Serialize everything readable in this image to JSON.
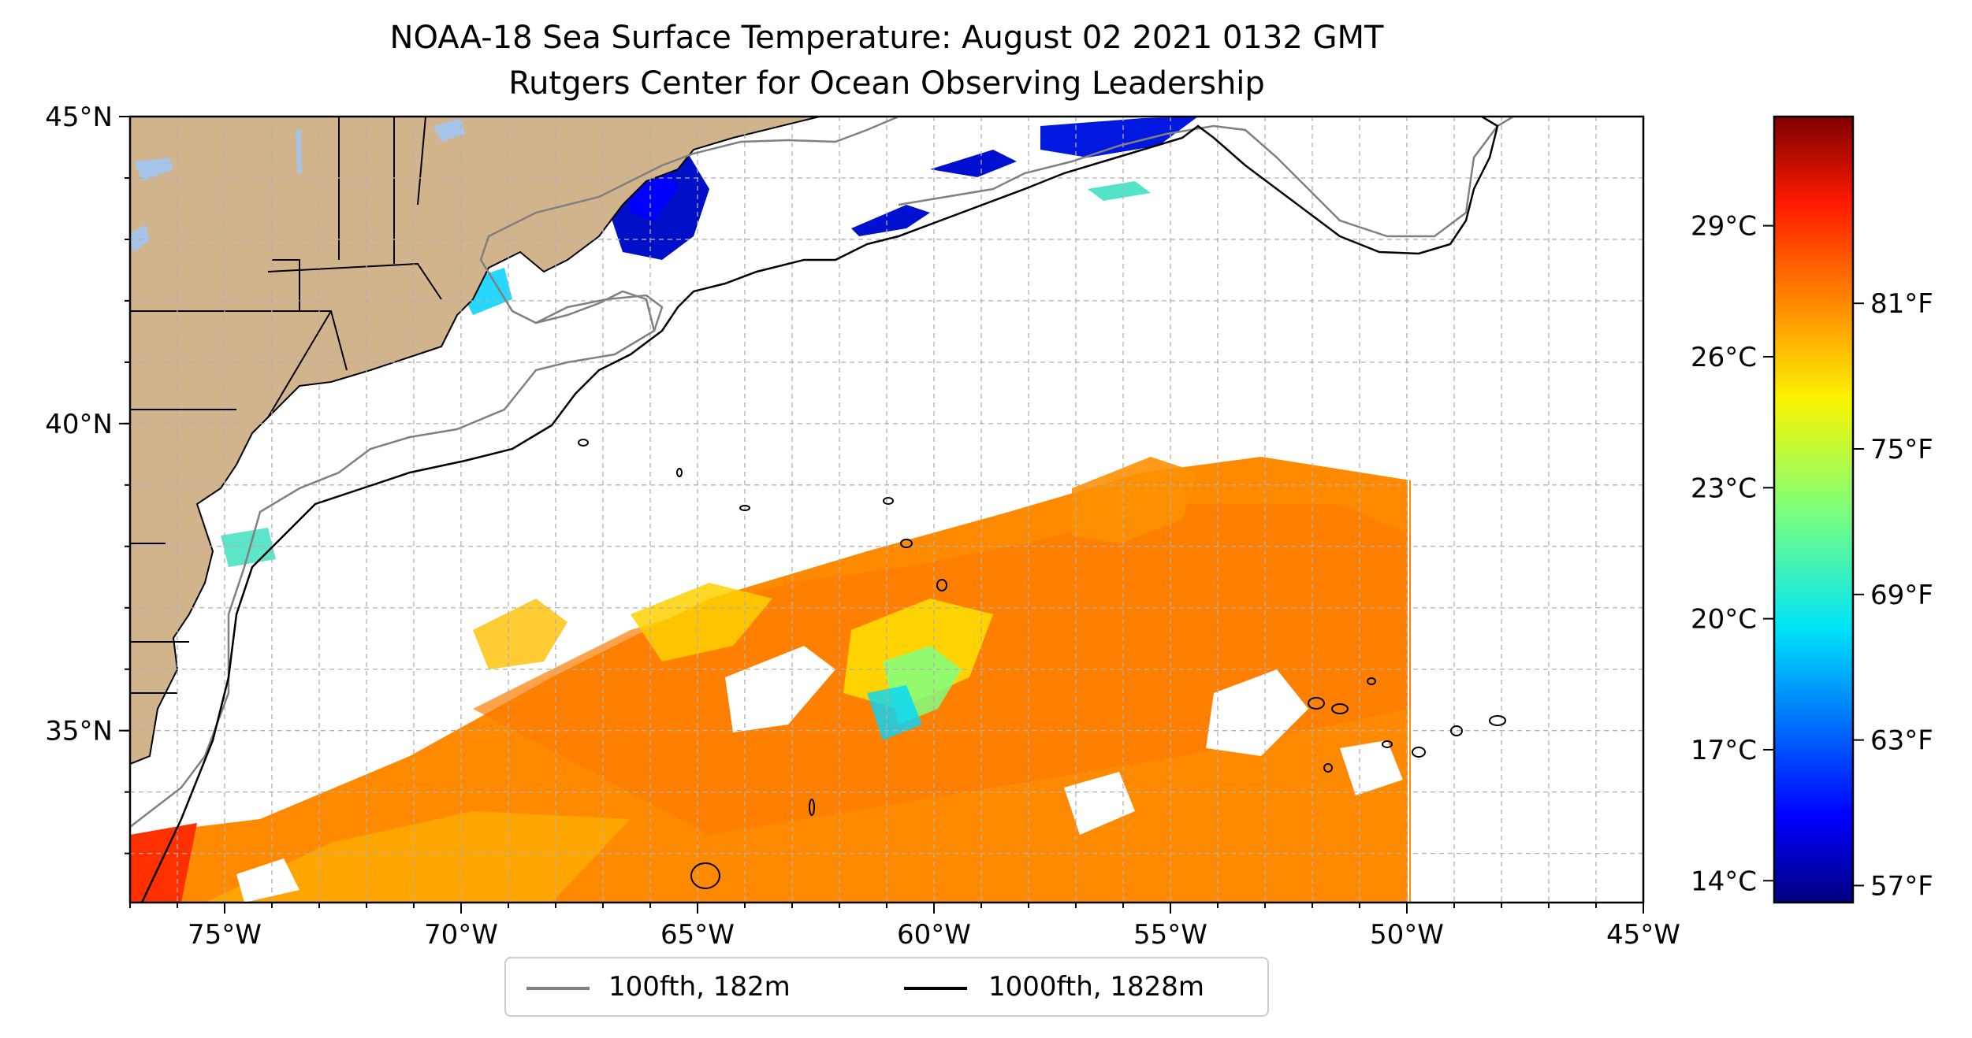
{
  "title": "NOAA-18 Sea Surface Temperature: August 02 2021 0132 GMT",
  "subtitle": "Rutgers Center for Ocean Observing Leadership",
  "map": {
    "lon_range": [
      -77,
      -45
    ],
    "lat_range": [
      32.2,
      45
    ],
    "lon_ticks": [
      {
        "value": -75,
        "label": "75°W"
      },
      {
        "value": -70,
        "label": "70°W"
      },
      {
        "value": -65,
        "label": "65°W"
      },
      {
        "value": -60,
        "label": "60°W"
      },
      {
        "value": -55,
        "label": "55°W"
      },
      {
        "value": -50,
        "label": "50°W"
      },
      {
        "value": -45,
        "label": "45°W"
      }
    ],
    "lat_ticks": [
      {
        "value": 45,
        "label": "45°N"
      },
      {
        "value": 40,
        "label": "40°N"
      },
      {
        "value": 35,
        "label": "35°N"
      }
    ],
    "grid": true,
    "colors": {
      "land": "#d2b48c",
      "lakes": "#a6c3e8",
      "isobath_100": "#808080",
      "isobath_1000": "#000000"
    }
  },
  "colorbar": {
    "celsius_range": [
      13.5,
      31.5
    ],
    "celsius_ticks": [
      {
        "value": 14,
        "label": "14°C"
      },
      {
        "value": 17,
        "label": "17°C"
      },
      {
        "value": 20,
        "label": "20°C"
      },
      {
        "value": 23,
        "label": "23°C"
      },
      {
        "value": 26,
        "label": "26°C"
      },
      {
        "value": 29,
        "label": "29°C"
      }
    ],
    "fahrenheit_ticks": [
      {
        "value": 57,
        "label": "57°F"
      },
      {
        "value": 63,
        "label": "63°F"
      },
      {
        "value": 69,
        "label": "69°F"
      },
      {
        "value": 75,
        "label": "75°F"
      },
      {
        "value": 81,
        "label": "81°F"
      }
    ],
    "colormap": "jet"
  },
  "legend": {
    "items": [
      {
        "label": "100fth, 182m",
        "color": "#808080"
      },
      {
        "label": "1000fth, 1828m",
        "color": "#000000"
      }
    ],
    "placement": "bottom-center"
  }
}
